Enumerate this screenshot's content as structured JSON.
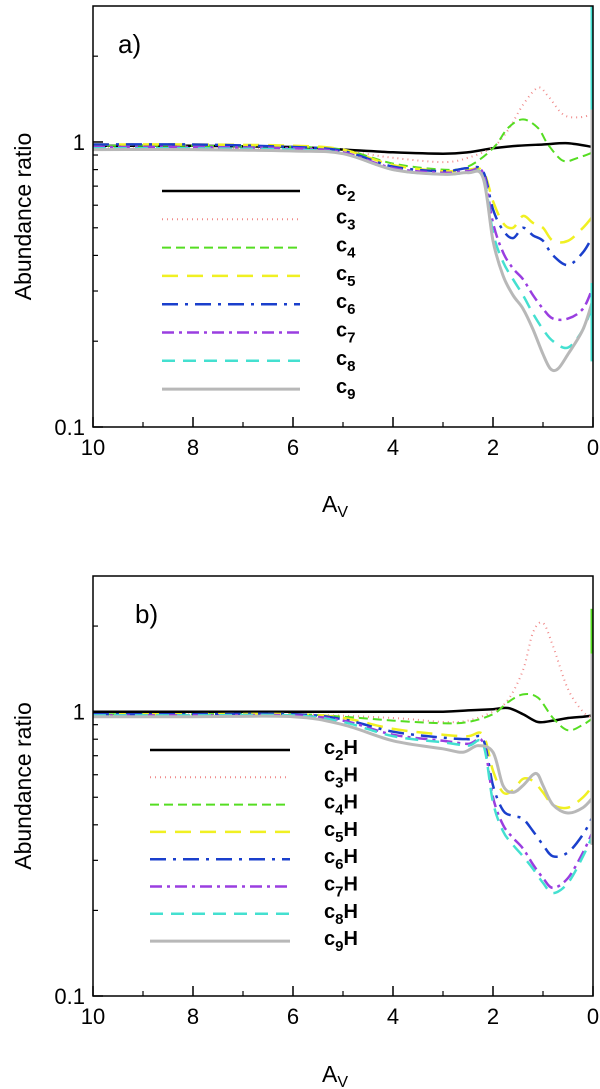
{
  "chart_data": [
    {
      "type": "line",
      "panel_label": "a)",
      "xlabel": "A",
      "xlabel_sub": "V",
      "ylabel": "Abundance ratio",
      "xlim": [
        10,
        0
      ],
      "ylim": [
        0.1,
        3
      ],
      "yscale": "log",
      "x_ticks": [
        10,
        8,
        6,
        4,
        2,
        0
      ],
      "x_tick_labels": [
        "10",
        "8",
        "6",
        "4",
        "2",
        "0"
      ],
      "y_ticks": [
        0.1,
        1
      ],
      "y_tick_labels": [
        "0.1",
        "1"
      ],
      "legend_position": "center-left",
      "series": [
        {
          "name": "c",
          "sub": "2",
          "suffix": "",
          "color": "#000000",
          "dash": "",
          "width": 2.5,
          "x": [
            10,
            8,
            6,
            5,
            4,
            3,
            2.5,
            2,
            1.5,
            1,
            0.5,
            0
          ],
          "values": [
            0.97,
            0.97,
            0.96,
            0.94,
            0.92,
            0.91,
            0.92,
            0.95,
            0.97,
            0.98,
            0.99,
            0.96
          ]
        },
        {
          "name": "c",
          "sub": "3",
          "suffix": "",
          "color": "#f08a8a",
          "dash": "1,4",
          "width": 2,
          "x": [
            10,
            8,
            6,
            5,
            4,
            3,
            2.5,
            2,
            1.7,
            1.4,
            1.1,
            0.9,
            0.6,
            0.3,
            0
          ],
          "values": [
            0.95,
            0.95,
            0.94,
            0.93,
            0.88,
            0.85,
            0.88,
            0.96,
            1.1,
            1.35,
            1.55,
            1.45,
            1.25,
            1.22,
            1.25
          ]
        },
        {
          "name": "c",
          "sub": "4",
          "suffix": "",
          "color": "#55dd22",
          "dash": "9,5",
          "width": 2,
          "x": [
            10,
            8,
            6,
            5,
            4,
            3,
            2.5,
            2,
            1.7,
            1.4,
            1.1,
            0.9,
            0.6,
            0.3,
            0
          ],
          "values": [
            0.97,
            0.97,
            0.96,
            0.94,
            0.84,
            0.8,
            0.82,
            0.95,
            1.12,
            1.2,
            1.12,
            0.98,
            0.86,
            0.88,
            0.92
          ]
        },
        {
          "name": "c",
          "sub": "5",
          "suffix": "",
          "color": "#f0f022",
          "dash": "16,9",
          "width": 2.5,
          "x": [
            10,
            8,
            6,
            5,
            4,
            3,
            2.5,
            2.2,
            2,
            1.8,
            1.6,
            1.4,
            1.2,
            1,
            0.8,
            0.5,
            0.2,
            0
          ],
          "values": [
            0.98,
            0.98,
            0.97,
            0.94,
            0.83,
            0.79,
            0.8,
            0.79,
            0.62,
            0.52,
            0.5,
            0.55,
            0.52,
            0.5,
            0.45,
            0.45,
            0.5,
            0.55
          ]
        },
        {
          "name": "c",
          "sub": "6",
          "suffix": "",
          "color": "#1a3fcc",
          "dash": "16,7,3,7",
          "width": 2.5,
          "x": [
            10,
            8,
            6,
            5,
            4,
            3,
            2.5,
            2.2,
            2,
            1.8,
            1.6,
            1.4,
            1.2,
            1,
            0.8,
            0.5,
            0.2,
            0
          ],
          "values": [
            0.98,
            0.98,
            0.96,
            0.93,
            0.82,
            0.79,
            0.81,
            0.79,
            0.58,
            0.49,
            0.46,
            0.5,
            0.47,
            0.45,
            0.4,
            0.37,
            0.41,
            0.47
          ]
        },
        {
          "name": "c",
          "sub": "7",
          "suffix": "",
          "color": "#9a3ee0",
          "dash": "12,5,3,5",
          "width": 2.5,
          "x": [
            10,
            8,
            6,
            5,
            4,
            3,
            2.5,
            2.2,
            2,
            1.8,
            1.6,
            1.4,
            1.2,
            1,
            0.8,
            0.5,
            0.2,
            0
          ],
          "values": [
            0.96,
            0.96,
            0.95,
            0.92,
            0.81,
            0.78,
            0.79,
            0.78,
            0.52,
            0.41,
            0.36,
            0.33,
            0.29,
            0.26,
            0.24,
            0.24,
            0.26,
            0.31
          ]
        },
        {
          "name": "c",
          "sub": "8",
          "suffix": "",
          "color": "#44e0d0",
          "dash": "13,8",
          "width": 2.5,
          "x": [
            10,
            8,
            6,
            5,
            4,
            3,
            2.5,
            2.2,
            2,
            1.8,
            1.6,
            1.4,
            1.2,
            1,
            0.8,
            0.5,
            0.2,
            0
          ],
          "values": [
            0.95,
            0.95,
            0.94,
            0.91,
            0.8,
            0.77,
            0.78,
            0.76,
            0.48,
            0.38,
            0.33,
            0.29,
            0.25,
            0.22,
            0.2,
            0.19,
            0.22,
            0.27
          ]
        },
        {
          "name": "c",
          "sub": "9",
          "suffix": "",
          "color": "#b8b8b8",
          "dash": "",
          "width": 3,
          "x": [
            10,
            8,
            6,
            5,
            4,
            3,
            2.5,
            2.2,
            2,
            1.8,
            1.6,
            1.4,
            1.2,
            1,
            0.85,
            0.7,
            0.5,
            0.2,
            0
          ],
          "values": [
            0.94,
            0.94,
            0.93,
            0.91,
            0.8,
            0.77,
            0.78,
            0.75,
            0.45,
            0.34,
            0.29,
            0.26,
            0.22,
            0.18,
            0.16,
            0.16,
            0.18,
            0.22,
            0.28
          ]
        }
      ]
    },
    {
      "type": "line",
      "panel_label": "b)",
      "xlabel": "A",
      "xlabel_sub": "V",
      "ylabel": "Abundance ratio",
      "xlim": [
        10,
        0
      ],
      "ylim": [
        0.1,
        3
      ],
      "yscale": "log",
      "x_ticks": [
        10,
        8,
        6,
        4,
        2,
        0
      ],
      "x_tick_labels": [
        "10",
        "8",
        "6",
        "4",
        "2",
        "0"
      ],
      "y_ticks": [
        0.1,
        1
      ],
      "y_tick_labels": [
        "0.1",
        "1"
      ],
      "legend_position": "center-left",
      "series": [
        {
          "name": "c",
          "sub": "2",
          "suffix": "H",
          "color": "#000000",
          "dash": "",
          "width": 2.5,
          "x": [
            10,
            8,
            6,
            4,
            3,
            2.5,
            2,
            1.7,
            1.4,
            1.1,
            0.8,
            0.5,
            0.2,
            0
          ],
          "values": [
            1.0,
            1.0,
            1.0,
            1.0,
            1.0,
            1.01,
            1.02,
            1.03,
            0.98,
            0.92,
            0.93,
            0.95,
            0.96,
            0.97
          ]
        },
        {
          "name": "c",
          "sub": "3",
          "suffix": "H",
          "color": "#f08a8a",
          "dash": "1,4",
          "width": 2,
          "x": [
            10,
            8,
            6,
            4,
            3,
            2.5,
            2,
            1.7,
            1.4,
            1.2,
            1.0,
            0.8,
            0.5,
            0.2,
            0
          ],
          "values": [
            0.98,
            0.98,
            0.98,
            0.95,
            0.92,
            0.93,
            1.0,
            1.1,
            1.4,
            1.9,
            2.05,
            1.7,
            1.2,
            1.0,
            0.95
          ]
        },
        {
          "name": "c",
          "sub": "4",
          "suffix": "H",
          "color": "#55dd22",
          "dash": "9,5",
          "width": 2,
          "x": [
            10,
            8,
            6,
            5,
            4,
            3,
            2.5,
            2,
            1.7,
            1.4,
            1.1,
            0.8,
            0.5,
            0.2,
            0
          ],
          "values": [
            0.98,
            0.98,
            0.98,
            0.96,
            0.93,
            0.91,
            0.92,
            0.98,
            1.08,
            1.15,
            1.12,
            0.95,
            0.86,
            0.9,
            0.95
          ]
        },
        {
          "name": "c",
          "sub": "5",
          "suffix": "H",
          "color": "#f0f022",
          "dash": "16,9",
          "width": 2.5,
          "x": [
            10,
            8,
            6,
            5,
            4,
            3,
            2.5,
            2.2,
            2,
            1.8,
            1.6,
            1.4,
            1.2,
            1,
            0.8,
            0.5,
            0.2,
            0
          ],
          "values": [
            0.98,
            0.98,
            0.98,
            0.95,
            0.87,
            0.83,
            0.82,
            0.83,
            0.62,
            0.52,
            0.53,
            0.58,
            0.57,
            0.52,
            0.47,
            0.46,
            0.5,
            0.55
          ]
        },
        {
          "name": "c",
          "sub": "6",
          "suffix": "H",
          "color": "#1a3fcc",
          "dash": "16,7,3,7",
          "width": 2.5,
          "x": [
            10,
            8,
            6,
            5,
            4,
            3,
            2.5,
            2.2,
            2,
            1.8,
            1.6,
            1.4,
            1.2,
            1,
            0.8,
            0.5,
            0.2,
            0
          ],
          "values": [
            0.98,
            0.98,
            0.98,
            0.94,
            0.85,
            0.81,
            0.8,
            0.8,
            0.55,
            0.45,
            0.43,
            0.42,
            0.38,
            0.34,
            0.31,
            0.32,
            0.37,
            0.43
          ]
        },
        {
          "name": "c",
          "sub": "7",
          "suffix": "H",
          "color": "#9a3ee0",
          "dash": "12,5,3,5",
          "width": 2.5,
          "x": [
            10,
            8,
            6,
            5,
            4,
            3,
            2.5,
            2.2,
            2,
            1.8,
            1.6,
            1.4,
            1.2,
            1,
            0.8,
            0.5,
            0.2,
            0
          ],
          "values": [
            0.97,
            0.97,
            0.97,
            0.93,
            0.83,
            0.79,
            0.77,
            0.78,
            0.5,
            0.4,
            0.36,
            0.33,
            0.29,
            0.26,
            0.24,
            0.26,
            0.32,
            0.38
          ]
        },
        {
          "name": "c",
          "sub": "8",
          "suffix": "H",
          "color": "#44e0d0",
          "dash": "13,8",
          "width": 2.5,
          "x": [
            10,
            8,
            6,
            5,
            4,
            3,
            2.5,
            2.2,
            2,
            1.8,
            1.6,
            1.4,
            1.2,
            1,
            0.8,
            0.5,
            0.2,
            0
          ],
          "values": [
            0.97,
            0.97,
            0.97,
            0.92,
            0.82,
            0.78,
            0.76,
            0.77,
            0.48,
            0.38,
            0.34,
            0.31,
            0.28,
            0.25,
            0.23,
            0.25,
            0.31,
            0.37
          ]
        },
        {
          "name": "c",
          "sub": "9",
          "suffix": "H",
          "color": "#b8b8b8",
          "dash": "",
          "width": 3,
          "x": [
            10,
            8,
            6,
            5,
            4,
            3,
            2.6,
            2.3,
            2,
            1.8,
            1.6,
            1.4,
            1.2,
            1.1,
            1,
            0.8,
            0.5,
            0.2,
            0
          ],
          "values": [
            0.96,
            0.96,
            0.96,
            0.9,
            0.79,
            0.74,
            0.72,
            0.76,
            0.72,
            0.55,
            0.52,
            0.55,
            0.6,
            0.6,
            0.55,
            0.47,
            0.44,
            0.46,
            0.5
          ]
        }
      ]
    }
  ]
}
